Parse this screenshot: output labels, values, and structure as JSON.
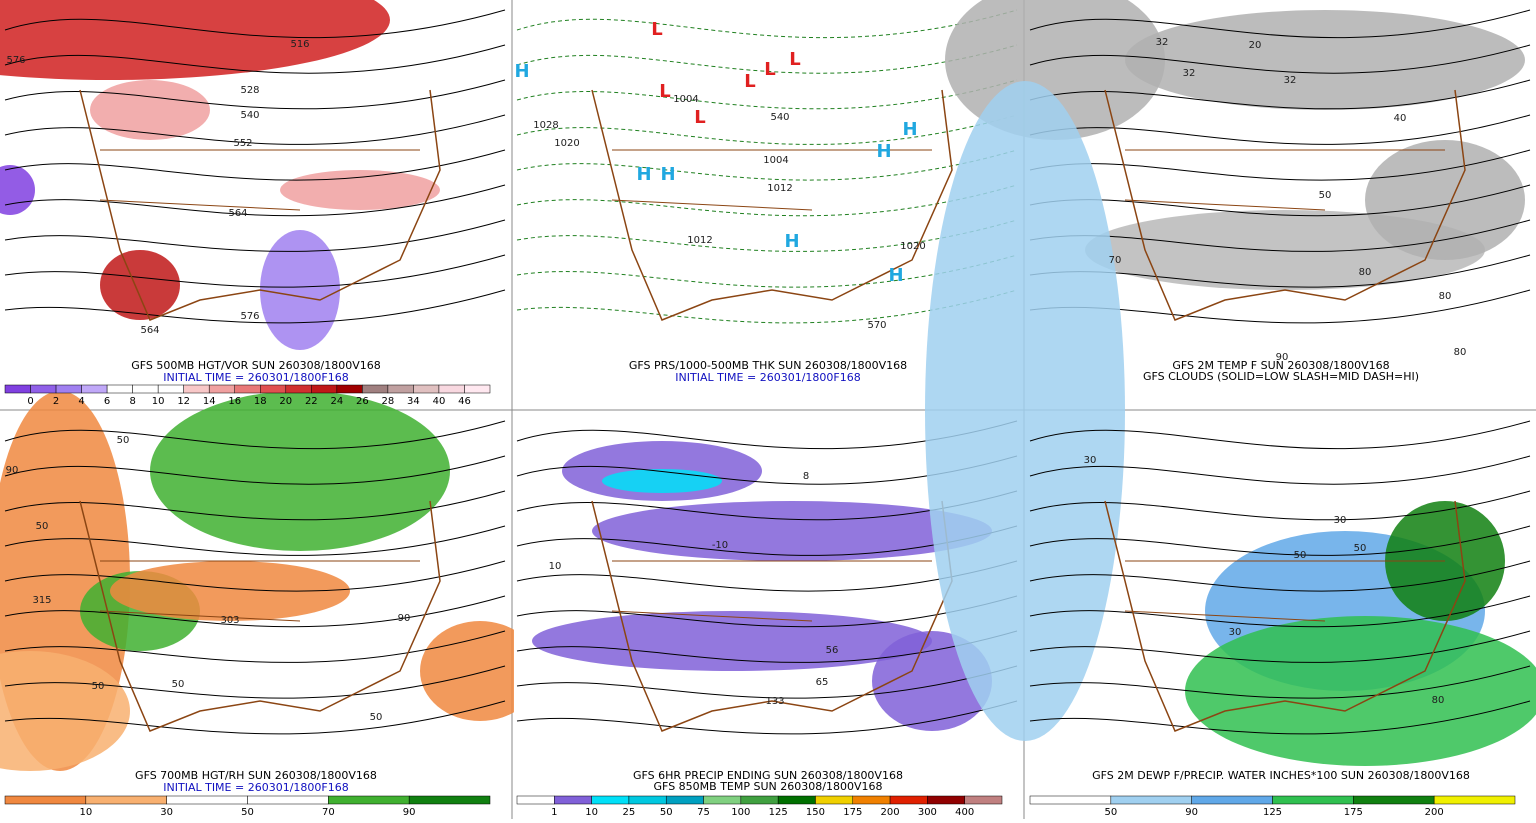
{
  "panels": [
    {
      "title": "GFS 500MB HGT/VOR SUN 260308/1800V168",
      "initial_time": "INITIAL TIME = 260301/1800F168",
      "colorbar": {
        "colors": [
          "#8040e0",
          "#9060e8",
          "#a080f0",
          "#c0a8f8",
          "#ffffff",
          "#ffffff",
          "#ffffff",
          "#f8c8c8",
          "#f0a0a0",
          "#e87878",
          "#e05050",
          "#d03030",
          "#c01818",
          "#a00000",
          "#a08080",
          "#c0a0a0",
          "#e0c0c0",
          "#f8d8e0",
          "#ffe8f0"
        ],
        "labels": [
          "0",
          "2",
          "4",
          "6",
          "8",
          "10",
          "12",
          "14",
          "16",
          "18",
          "20",
          "22",
          "24",
          "26",
          "28",
          "34",
          "40",
          "46"
        ]
      },
      "map_labels": [
        "576",
        "516",
        "528",
        "540",
        "552",
        "564",
        "564",
        "576"
      ]
    },
    {
      "title": "GFS PRS/1000-500MB THK SUN 260308/1800V168",
      "initial_time": "INITIAL TIME = 260301/1800F168",
      "map_labels": [
        "1028",
        "1020",
        "1004",
        "1004",
        "1012",
        "1012",
        "1020",
        "570",
        "540",
        "H",
        "H",
        "H",
        "H",
        "H",
        "H",
        "H",
        "L",
        "L",
        "L",
        "L",
        "L",
        "L"
      ]
    },
    {
      "title": "GFS 2M TEMP F SUN 260308/1800V168",
      "subtitle": "GFS CLOUDS (SOLID=LOW SLASH=MID DASH=HI)",
      "map_labels": [
        "32",
        "32",
        "20",
        "32",
        "40",
        "50",
        "70",
        "80",
        "80",
        "90",
        "80"
      ]
    },
    {
      "title": "GFS 700MB HGT/RH SUN 260308/1800V168",
      "initial_time": "INITIAL TIME = 260301/1800F168",
      "colorbar": {
        "colors": [
          "#f08840",
          "#f8b070",
          "#ffffff",
          "#ffffff",
          "#40b030",
          "#108010"
        ],
        "labels": [
          "10",
          "30",
          "50",
          "70",
          "90"
        ]
      },
      "map_labels": [
        "90",
        "50",
        "315",
        "50",
        "303",
        "50",
        "50",
        "90",
        "50"
      ]
    },
    {
      "title": "GFS 6HR PRECIP ENDING SUN 260308/1800V168",
      "subtitle": "GFS 850MB TEMP SUN 260308/1800V168",
      "colorbar": {
        "colors": [
          "#ffffff",
          "#8060d8",
          "#00e0f8",
          "#00c8e0",
          "#00a0c0",
          "#80d080",
          "#40a040",
          "#007000",
          "#f0d000",
          "#f08000",
          "#e02000",
          "#900000",
          "#c08080"
        ],
        "labels": [
          "1",
          "10",
          "25",
          "50",
          "75",
          "100",
          "125",
          "150",
          "175",
          "200",
          "300",
          "400"
        ]
      },
      "map_labels": [
        "8",
        "56",
        "65",
        "133",
        "-10",
        "10"
      ]
    },
    {
      "title": "GFS 2M DEWP F/PRECIP. WATER INCHES*100 SUN 260308/1800V168",
      "colorbar": {
        "colors": [
          "#ffffff",
          "#a0d0f0",
          "#60a8e8",
          "#30c050",
          "#108010",
          "#f0f000"
        ],
        "labels": [
          "50",
          "90",
          "125",
          "175",
          "200"
        ]
      },
      "map_labels": [
        "30",
        "30",
        "30",
        "50",
        "50",
        "80"
      ]
    }
  ]
}
